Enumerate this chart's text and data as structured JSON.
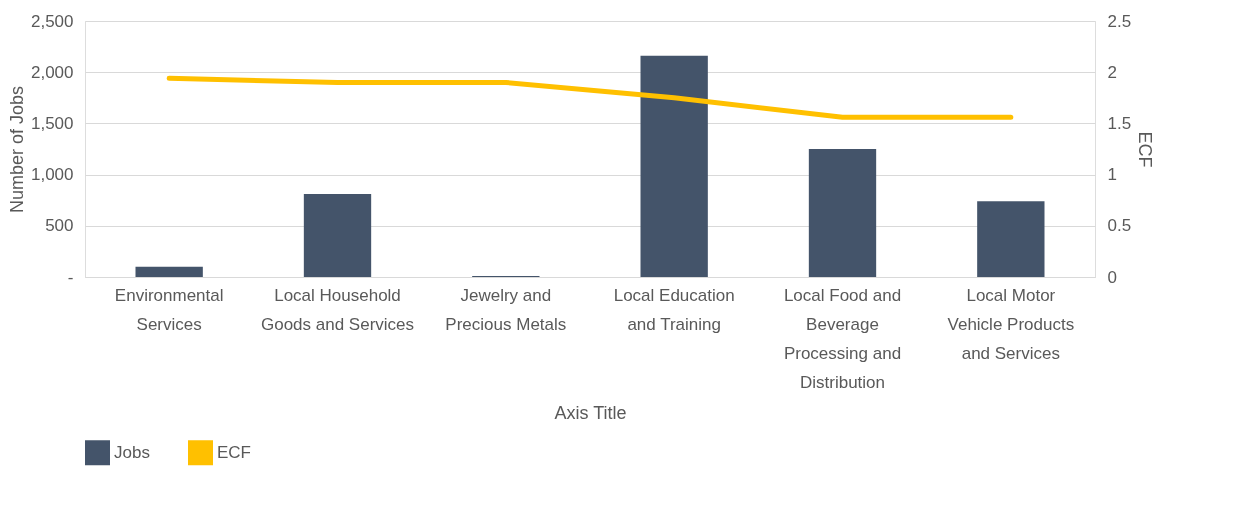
{
  "chart_data": {
    "type": "bar",
    "xlabel": "Axis Title",
    "ylabel": "Number of Jobs",
    "y2label": "ECF",
    "categories": [
      "Environmental Services",
      "Local Household Goods and Services",
      "Jewelry and Precious Metals",
      "Local Education and Training",
      "Local Food and Beverage Processing and Distribution",
      "Local Motor Vehicle Products and Services"
    ],
    "series": [
      {
        "name": "Jobs",
        "color": "#44546a",
        "values": [
          100,
          810,
          10,
          2160,
          1250,
          740
        ]
      },
      {
        "name": "ECF",
        "type": "line",
        "axis": "y2",
        "color": "#ffc000",
        "values": [
          1.94,
          1.9,
          1.9,
          1.75,
          1.56,
          1.56
        ]
      }
    ],
    "ylim": [
      0,
      2500
    ],
    "yticks": [
      {
        "value": 0,
        "label": "-"
      },
      500,
      {
        "value": 1000,
        "label": "1,000"
      },
      {
        "value": 1500,
        "label": "1,500"
      },
      {
        "value": 2000,
        "label": "2,000"
      },
      {
        "value": 2500,
        "label": "2,500"
      }
    ],
    "y2lim": [
      0,
      2.5
    ],
    "y2ticks": [
      0,
      0.5,
      1,
      1.5,
      2,
      2.5
    ],
    "grid": "y",
    "legend": "bottom",
    "marker": "none",
    "line_style": "solid"
  }
}
